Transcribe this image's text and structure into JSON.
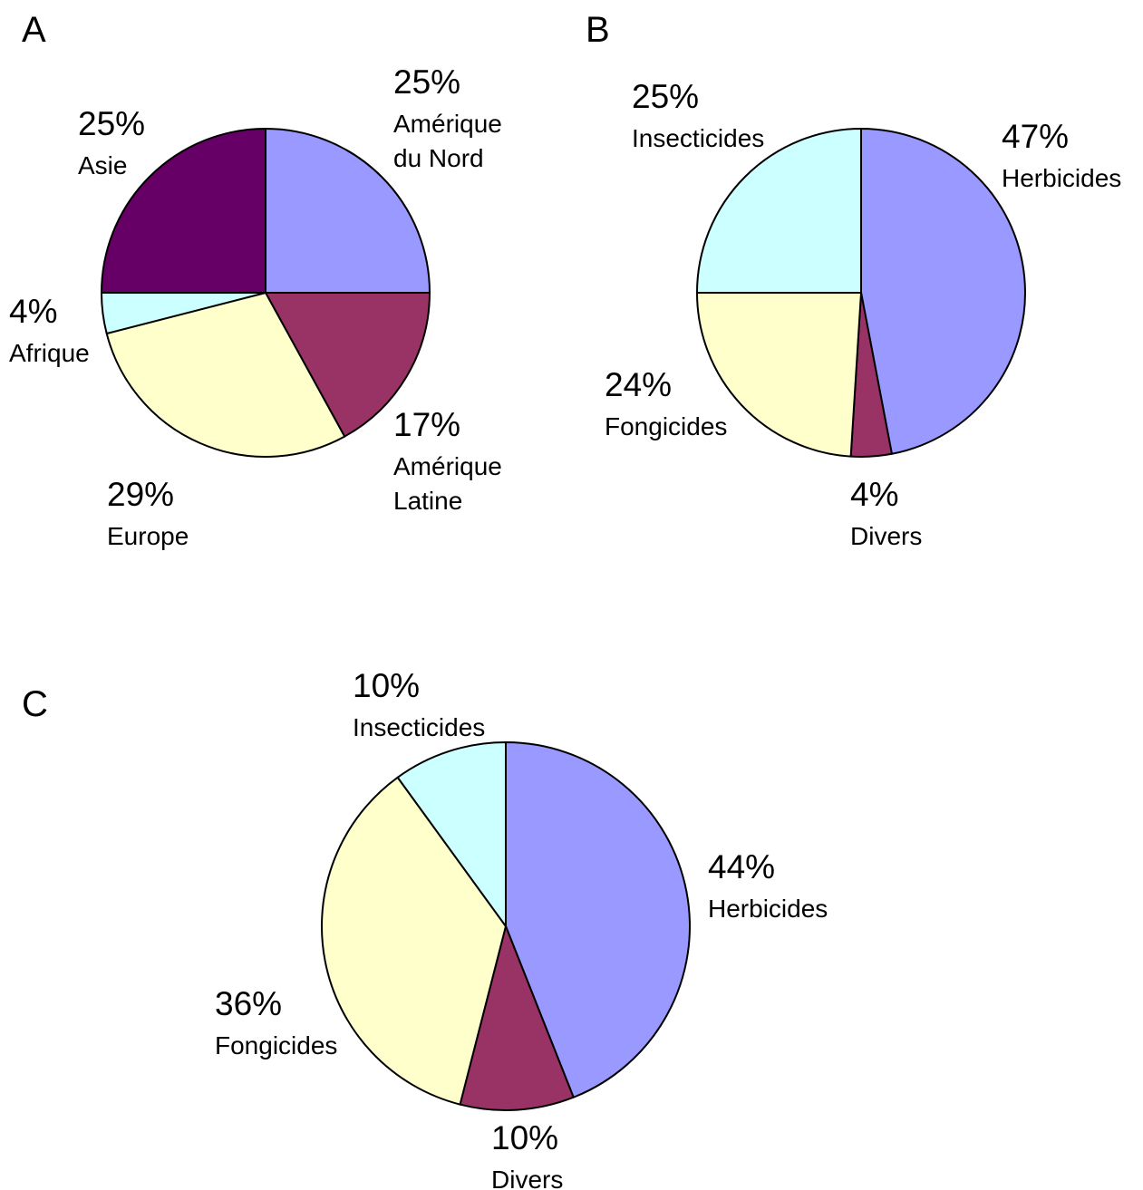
{
  "chart_data": [
    {
      "type": "pie",
      "panel": "A",
      "slices": [
        {
          "label": [
            "Amérique",
            "du Nord"
          ],
          "value": 25,
          "text": "25%",
          "color": "#9999ff"
        },
        {
          "label": [
            "Amérique",
            "Latine"
          ],
          "value": 17,
          "text": "17%",
          "color": "#993366"
        },
        {
          "label": [
            "Europe"
          ],
          "value": 29,
          "text": "29%",
          "color": "#ffffcc"
        },
        {
          "label": [
            "Afrique"
          ],
          "value": 4,
          "text": "4%",
          "color": "#ccffff"
        },
        {
          "label": [
            "Asie"
          ],
          "value": 25,
          "text": "25%",
          "color": "#660066"
        }
      ]
    },
    {
      "type": "pie",
      "panel": "B",
      "slices": [
        {
          "label": [
            "Herbicides"
          ],
          "value": 47,
          "text": "47%",
          "color": "#9999ff"
        },
        {
          "label": [
            "Divers"
          ],
          "value": 4,
          "text": "4%",
          "color": "#993366"
        },
        {
          "label": [
            "Fongicides"
          ],
          "value": 24,
          "text": "24%",
          "color": "#ffffcc"
        },
        {
          "label": [
            "Insecticides"
          ],
          "value": 25,
          "text": "25%",
          "color": "#ccffff"
        }
      ]
    },
    {
      "type": "pie",
      "panel": "C",
      "slices": [
        {
          "label": [
            "Herbicides"
          ],
          "value": 44,
          "text": "44%",
          "color": "#9999ff"
        },
        {
          "label": [
            "Divers"
          ],
          "value": 10,
          "text": "10%",
          "color": "#993366"
        },
        {
          "label": [
            "Fongicides"
          ],
          "value": 36,
          "text": "36%",
          "color": "#ffffcc"
        },
        {
          "label": [
            "Insecticides"
          ],
          "value": 10,
          "text": "10%",
          "color": "#ccffff"
        }
      ]
    }
  ]
}
